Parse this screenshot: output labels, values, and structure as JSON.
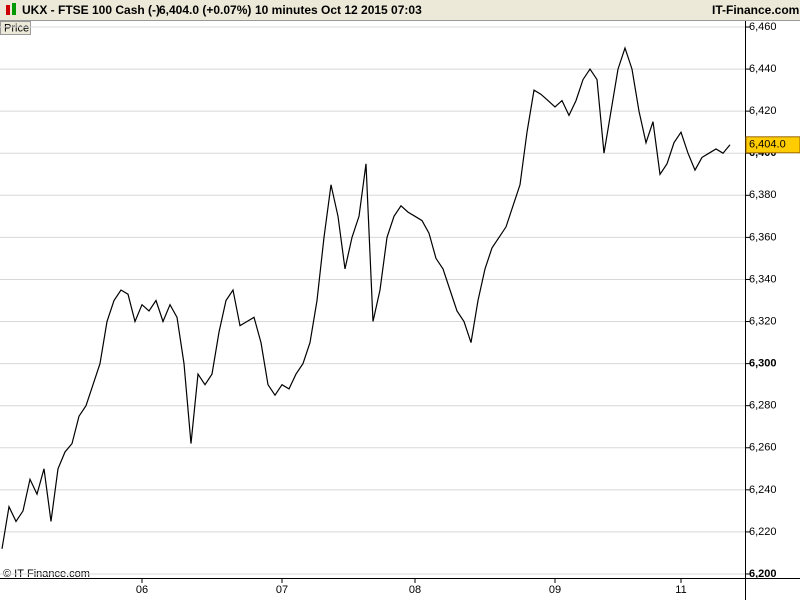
{
  "header": {
    "symbol": "UKX - FTSE 100 Cash (-)",
    "quote": "6,404.0 (+0.07%)",
    "interval": "10 minutes",
    "datetime": "Oct 12 2015 07:03",
    "brand": "IT-Finance.com"
  },
  "chart_data": {
    "type": "line",
    "panel_label": "Price",
    "copyright": "© IT-Finance.com",
    "categories": [
      null,
      null,
      null,
      null,
      null,
      null,
      null,
      null,
      null,
      null,
      null,
      null,
      null,
      null,
      null,
      null,
      null,
      null,
      null,
      null,
      "06",
      null,
      null,
      null,
      null,
      null,
      null,
      null,
      null,
      null,
      null,
      null,
      null,
      null,
      null,
      null,
      null,
      null,
      null,
      null,
      "07",
      null,
      null,
      null,
      null,
      null,
      null,
      null,
      null,
      null,
      null,
      null,
      null,
      null,
      null,
      null,
      null,
      null,
      null,
      "08",
      null,
      null,
      null,
      null,
      null,
      null,
      null,
      null,
      null,
      null,
      null,
      null,
      null,
      null,
      null,
      null,
      null,
      null,
      null,
      "09",
      null,
      null,
      null,
      null,
      null,
      null,
      null,
      null,
      null,
      null,
      null,
      null,
      null,
      null,
      null,
      null,
      null,
      "11",
      null,
      null,
      null,
      null,
      null,
      null,
      null
    ],
    "series": [
      {
        "name": "UKX",
        "color": "#000000",
        "values": [
          6212,
          6232,
          6225,
          6230,
          6245,
          6238,
          6250,
          6225,
          6250,
          6258,
          6262,
          6275,
          6280,
          6290,
          6300,
          6320,
          6330,
          6335,
          6333,
          6320,
          6328,
          6325,
          6330,
          6320,
          6328,
          6322,
          6300,
          6262,
          6295,
          6290,
          6295,
          6315,
          6330,
          6335,
          6318,
          6320,
          6322,
          6310,
          6290,
          6285,
          6290,
          6288,
          6295,
          6300,
          6310,
          6330,
          6360,
          6385,
          6370,
          6345,
          6360,
          6370,
          6395,
          6320,
          6335,
          6360,
          6370,
          6375,
          6372,
          6370,
          6368,
          6362,
          6350,
          6345,
          6335,
          6325,
          6320,
          6310,
          6330,
          6345,
          6355,
          6360,
          6365,
          6375,
          6385,
          6410,
          6430,
          6428,
          6425,
          6422,
          6425,
          6418,
          6425,
          6435,
          6440,
          6435,
          6400,
          6420,
          6440,
          6450,
          6440,
          6420,
          6405,
          6415,
          6390,
          6395,
          6405,
          6410,
          6400,
          6392,
          6398,
          6400,
          6402,
          6400,
          6404
        ]
      }
    ],
    "last_value": 6404,
    "last_label": "6,404.0",
    "ylim": [
      6200,
      6460
    ],
    "yticks": [
      {
        "value": 6200,
        "label": "6,200"
      },
      {
        "value": 6220,
        "label": "6,220"
      },
      {
        "value": 6240,
        "label": "6,240"
      },
      {
        "value": 6260,
        "label": "6,260"
      },
      {
        "value": 6280,
        "label": "6,280"
      },
      {
        "value": 6300,
        "label": "6,300"
      },
      {
        "value": 6320,
        "label": "6,320"
      },
      {
        "value": 6340,
        "label": "6,340"
      },
      {
        "value": 6360,
        "label": "6,360"
      },
      {
        "value": 6380,
        "label": "6,380"
      },
      {
        "value": 6400,
        "label": "6,400"
      },
      {
        "value": 6420,
        "label": "6,420"
      },
      {
        "value": 6440,
        "label": "6,440"
      },
      {
        "value": 6460,
        "label": "6,460"
      }
    ],
    "grid": true
  }
}
